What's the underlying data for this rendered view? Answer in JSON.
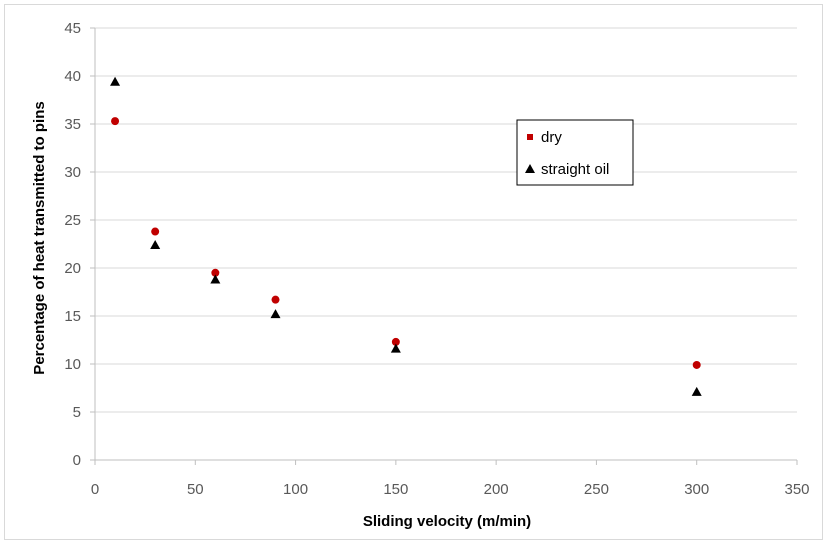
{
  "chart_data": {
    "type": "scatter",
    "title": "",
    "xlabel": "Sliding velocity (m/min)",
    "ylabel": "Percentage of heat transmitted to pins",
    "xlim": [
      0,
      350
    ],
    "ylim": [
      0,
      45
    ],
    "xticks": [
      0,
      50,
      100,
      150,
      200,
      250,
      300,
      350
    ],
    "yticks": [
      0,
      5,
      10,
      15,
      20,
      25,
      30,
      35,
      40,
      45
    ],
    "grid": "horizontal",
    "legend_position": "upper-right inside plot",
    "series": [
      {
        "name": "dry",
        "marker": "circle",
        "color": "#c00000",
        "x": [
          10,
          30,
          60,
          90,
          150,
          300
        ],
        "y": [
          35.3,
          23.8,
          19.5,
          16.7,
          12.3,
          9.9
        ]
      },
      {
        "name": "straight oil",
        "marker": "triangle",
        "color": "#000000",
        "x": [
          10,
          30,
          60,
          90,
          150,
          300
        ],
        "y": [
          39.4,
          22.4,
          18.8,
          15.2,
          11.6,
          7.1
        ]
      }
    ]
  }
}
